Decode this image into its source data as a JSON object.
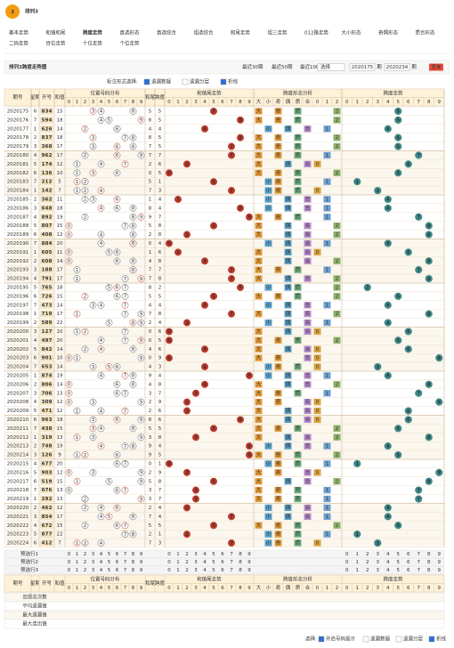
{
  "header": {
    "logo": "3",
    "title": "排列3"
  },
  "nav": [
    "基本走势",
    "和值和尾",
    "跨度走势",
    "直选形态",
    "直选综合",
    "组选综合",
    "和尾走势",
    "组三走势",
    "012路走势",
    "大小形态",
    "奇偶形态",
    "质合形态",
    "二码走势",
    "百位走势",
    "十位走势",
    "个位走势"
  ],
  "toolbar": {
    "title": "排列3跨度走势图",
    "periods": [
      "最近30期",
      "最近50期",
      "最近100期"
    ],
    "select": "选择",
    "from": "2020175",
    "from_unit": "期",
    "to": "2020234",
    "to_unit": "期",
    "query": "查询"
  },
  "options": {
    "label": "标注形式选择:",
    "items": [
      "遗漏数据",
      "遗漏分层",
      "折线"
    ]
  },
  "table": {
    "headers": {
      "issue": "期号",
      "week": "星期",
      "open": "开号",
      "sum": "和值",
      "dist": "位置号码分布",
      "tail": "和尾",
      "span": "跨度",
      "tail_trend": "和值尾走势",
      "shape": "跨度形态分析",
      "span_trend": "跨度走势"
    },
    "digits": [
      0,
      1,
      2,
      3,
      4,
      5,
      6,
      7,
      8,
      9
    ],
    "shape_cols": [
      "大",
      "小",
      "奇",
      "偶",
      "质",
      "合",
      "0",
      "1",
      "2"
    ],
    "rows": [
      [
        "2020175",
        "6",
        [
          8,
          3,
          4
        ],
        15,
        5,
        5
      ],
      [
        "2020176",
        "7",
        [
          5,
          9,
          4
        ],
        18,
        8,
        5
      ],
      [
        "2020177",
        "1",
        [
          6,
          2,
          6
        ],
        14,
        4,
        4
      ],
      [
        "2020178",
        "2",
        [
          8,
          3,
          7
        ],
        18,
        8,
        5
      ],
      [
        "2020179",
        "3",
        [
          3,
          6,
          8
        ],
        17,
        7,
        5
      ],
      [
        "2020180",
        "4",
        [
          9,
          6,
          2
        ],
        17,
        7,
        7
      ],
      [
        "2020181",
        "5",
        [
          1,
          7,
          4
        ],
        12,
        2,
        6
      ],
      [
        "2020182",
        "6",
        [
          1,
          3,
          6
        ],
        10,
        0,
        5
      ],
      [
        "2020183",
        "7",
        [
          2,
          1,
          2
        ],
        5,
        5,
        1
      ],
      [
        "2020184",
        "1",
        [
          1,
          4,
          2
        ],
        7,
        7,
        3
      ],
      [
        "2020185",
        "2",
        [
          3,
          6,
          2
        ],
        11,
        1,
        4
      ],
      [
        "2020186",
        "3",
        [
          6,
          4,
          8
        ],
        18,
        8,
        4
      ],
      [
        "2020187",
        "4",
        [
          8,
          9,
          2
        ],
        19,
        9,
        7
      ],
      [
        "2020188",
        "5",
        [
          8,
          0,
          7
        ],
        15,
        5,
        8
      ],
      [
        "2020189",
        "6",
        [
          4,
          0,
          8
        ],
        12,
        2,
        8
      ],
      [
        "2020190",
        "7",
        [
          8,
          8,
          4
        ],
        20,
        0,
        4
      ],
      [
        "2020191",
        "1",
        [
          6,
          0,
          5
        ],
        11,
        1,
        6
      ],
      [
        "2020192",
        "2",
        [
          6,
          0,
          8
        ],
        14,
        4,
        8
      ],
      [
        "2020193",
        "3",
        [
          1,
          8,
          8
        ],
        17,
        7,
        7
      ],
      [
        "2020194",
        "4",
        [
          7,
          9,
          1
        ],
        17,
        7,
        8
      ],
      [
        "2020195",
        "5",
        [
          7,
          6,
          5
        ],
        18,
        8,
        2
      ],
      [
        "2020196",
        "6",
        [
          7,
          2,
          6
        ],
        15,
        5,
        5
      ],
      [
        "2020197",
        "7",
        [
          4,
          7,
          3
        ],
        14,
        4,
        4
      ],
      [
        "2020198",
        "1",
        [
          7,
          1,
          9
        ],
        17,
        7,
        8
      ],
      [
        "2020199",
        "2",
        [
          5,
          8,
          9
        ],
        22,
        2,
        4
      ],
      [
        "2020200",
        "3",
        [
          1,
          2,
          7
        ],
        10,
        0,
        6
      ],
      [
        "2020201",
        "4",
        [
          4,
          9,
          7
        ],
        20,
        0,
        5
      ],
      [
        "2020202",
        "5",
        [
          8,
          4,
          2
        ],
        14,
        4,
        6
      ],
      [
        "2020203",
        "6",
        [
          9,
          0,
          1
        ],
        10,
        0,
        9
      ],
      [
        "2020204",
        "7",
        [
          6,
          5,
          3
        ],
        14,
        4,
        3
      ],
      [
        "2020205",
        "1",
        [
          8,
          7,
          4
        ],
        19,
        9,
        4
      ],
      [
        "2020206",
        "2",
        [
          8,
          0,
          6
        ],
        14,
        4,
        8
      ],
      [
        "2020207",
        "3",
        [
          7,
          0,
          6
        ],
        13,
        3,
        7
      ],
      [
        "2020208",
        "4",
        [
          3,
          0,
          9
        ],
        12,
        2,
        9
      ],
      [
        "2020209",
        "5",
        [
          4,
          7,
          1
        ],
        12,
        2,
        6
      ],
      [
        "2020210",
        "6",
        [
          9,
          6,
          3
        ],
        18,
        8,
        6
      ],
      [
        "2020211",
        "7",
        [
          4,
          3,
          8
        ],
        15,
        5,
        5
      ],
      [
        "2020212",
        "1",
        [
          3,
          1,
          9
        ],
        13,
        3,
        8
      ],
      [
        "2020213",
        "2",
        [
          7,
          4,
          8
        ],
        19,
        9,
        4
      ],
      [
        "2020214",
        "3",
        [
          1,
          2,
          6
        ],
        9,
        9,
        5
      ],
      [
        "2020215",
        "4",
        [
          6,
          7,
          7
        ],
        20,
        0,
        1
      ],
      [
        "2020216",
        "5",
        [
          9,
          0,
          3
        ],
        12,
        2,
        9
      ],
      [
        "2020217",
        "6",
        [
          5,
          1,
          9
        ],
        15,
        5,
        8
      ],
      [
        "2020218",
        "7",
        [
          0,
          7,
          6
        ],
        13,
        3,
        7
      ],
      [
        "2020219",
        "1",
        [
          2,
          9,
          2
        ],
        13,
        3,
        7
      ],
      [
        "2020220",
        "2",
        [
          4,
          6,
          2
        ],
        12,
        2,
        4
      ],
      [
        "2020221",
        "3",
        [
          8,
          5,
          4
        ],
        17,
        7,
        4
      ],
      [
        "2020222",
        "4",
        [
          6,
          7,
          2
        ],
        15,
        5,
        5
      ],
      [
        "2020223",
        "5",
        [
          8,
          7,
          7
        ],
        22,
        2,
        1
      ],
      [
        "2020224",
        "6",
        [
          4,
          1,
          2
        ],
        7,
        7,
        3
      ]
    ],
    "preselect": [
      "预选行1",
      "预选行2",
      "预选行3"
    ],
    "stats": [
      "出现总次数",
      "平均遗漏值",
      "最大遗漏值",
      "最大连出值"
    ]
  },
  "footer": {
    "label": "选择:",
    "items": [
      "开启号码提示",
      "遗漏数据",
      "遗漏分层",
      "折线"
    ]
  }
}
